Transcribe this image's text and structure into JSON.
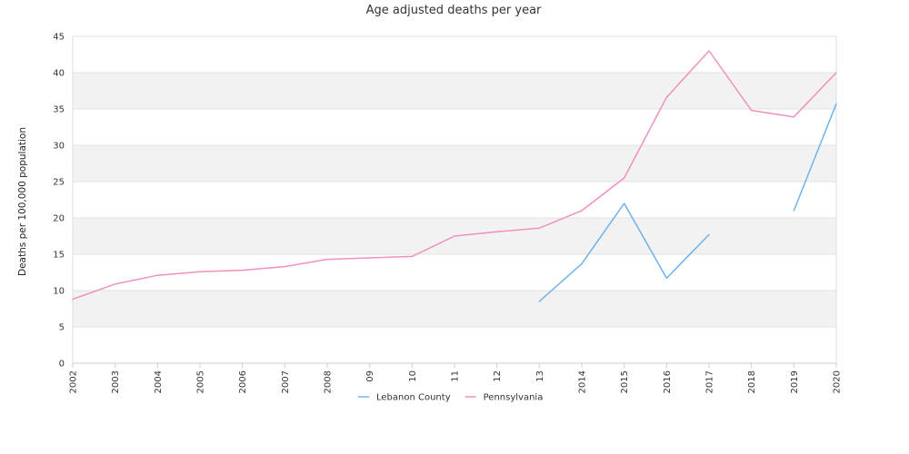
{
  "chart_data": {
    "type": "line",
    "title": "Age adjusted deaths per year",
    "xlabel": "",
    "ylabel": "Deaths per 100,000 population",
    "ylim": [
      0,
      45
    ],
    "yticks": [
      0,
      5,
      10,
      15,
      20,
      25,
      30,
      35,
      40,
      45
    ],
    "categories": [
      "2002",
      "2003",
      "2004",
      "2005",
      "2006",
      "2007",
      "2008",
      "09",
      "10",
      "11",
      "12",
      "13",
      "2014",
      "2015",
      "2016",
      "2017",
      "2018",
      "2019",
      "2020"
    ],
    "series": [
      {
        "name": "Lebanon County",
        "color": "#6fb2ea",
        "values": [
          null,
          null,
          null,
          null,
          null,
          null,
          null,
          null,
          null,
          null,
          null,
          8.5,
          13.7,
          22.0,
          11.7,
          17.7,
          null,
          21.0,
          35.7
        ]
      },
      {
        "name": "Pennsylvania",
        "color": "#f08fc0",
        "values": [
          8.8,
          10.9,
          12.1,
          12.6,
          12.8,
          13.3,
          14.3,
          14.5,
          14.7,
          17.5,
          18.1,
          18.6,
          21.0,
          25.5,
          36.6,
          43.0,
          34.8,
          33.9,
          40.0
        ]
      }
    ],
    "legend_position": "bottom-center",
    "grid": true,
    "band_color": "#f2f2f2"
  }
}
